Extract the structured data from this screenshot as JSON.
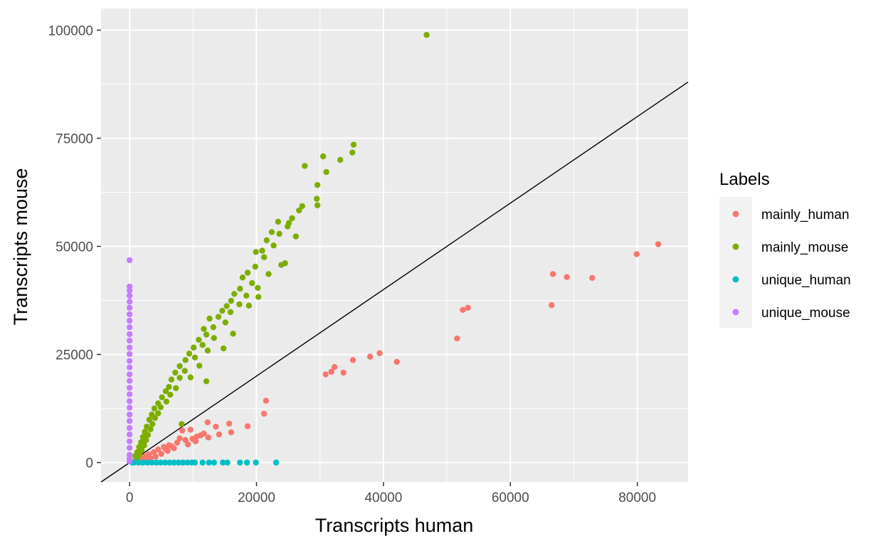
{
  "chart_data": {
    "type": "scatter",
    "xlabel": "Transcripts human",
    "ylabel": "Transcripts mouse",
    "xlim": [
      -4500,
      88000
    ],
    "ylim": [
      -4500,
      105000
    ],
    "x_ticks": [
      0,
      20000,
      40000,
      60000,
      80000
    ],
    "x_tick_labels": [
      "0",
      "20000",
      "40000",
      "60000",
      "80000"
    ],
    "y_ticks": [
      0,
      25000,
      50000,
      75000,
      100000
    ],
    "y_tick_labels": [
      "0",
      "25000",
      "50000",
      "75000",
      "100000"
    ],
    "grid": true,
    "background": "#EBEBEB",
    "reference_line": {
      "type": "identity",
      "slope": 1,
      "intercept": 0,
      "color": "#000000"
    },
    "legend": {
      "title": "Labels",
      "placement": "right"
    },
    "series": [
      {
        "name": "mainly_human",
        "color": "#F8766D",
        "points": [
          [
            83300,
            50500
          ],
          [
            79900,
            48200
          ],
          [
            66700,
            43600
          ],
          [
            68900,
            42900
          ],
          [
            72900,
            42700
          ],
          [
            66500,
            36400
          ],
          [
            53300,
            35800
          ],
          [
            52500,
            35300
          ],
          [
            51600,
            28700
          ],
          [
            39400,
            25300
          ],
          [
            37900,
            24500
          ],
          [
            35200,
            23700
          ],
          [
            42100,
            23300
          ],
          [
            32300,
            22100
          ],
          [
            31800,
            21000
          ],
          [
            30900,
            20400
          ],
          [
            33700,
            20800
          ],
          [
            21500,
            14300
          ],
          [
            21200,
            11300
          ],
          [
            12300,
            9300
          ],
          [
            15700,
            9000
          ],
          [
            18600,
            8400
          ],
          [
            13600,
            8300
          ],
          [
            9600,
            7600
          ],
          [
            8300,
            7400
          ],
          [
            16000,
            7000
          ],
          [
            11700,
            6700
          ],
          [
            14100,
            6500
          ],
          [
            10600,
            6000
          ],
          [
            9900,
            5500
          ],
          [
            12400,
            5800
          ],
          [
            7500,
            4600
          ],
          [
            8800,
            5200
          ],
          [
            6200,
            4000
          ],
          [
            9200,
            4200
          ],
          [
            5400,
            3600
          ],
          [
            7000,
            3300
          ],
          [
            4500,
            3000
          ],
          [
            6000,
            2700
          ],
          [
            3800,
            2400
          ],
          [
            5000,
            2000
          ],
          [
            3000,
            1900
          ],
          [
            4100,
            1400
          ],
          [
            2400,
            1400
          ],
          [
            3300,
            1000
          ],
          [
            1800,
            900
          ],
          [
            2700,
            600
          ],
          [
            1400,
            500
          ],
          [
            2100,
            300
          ],
          [
            1100,
            200
          ],
          [
            10400,
            4900
          ],
          [
            11200,
            6300
          ],
          [
            7900,
            5600
          ],
          [
            6600,
            3800
          ],
          [
            5700,
            3100
          ]
        ]
      },
      {
        "name": "mainly_mouse",
        "color": "#7CAE00",
        "points": [
          [
            46800,
            98900
          ],
          [
            35300,
            73500
          ],
          [
            35100,
            71700
          ],
          [
            30500,
            70800
          ],
          [
            33200,
            70000
          ],
          [
            27600,
            68600
          ],
          [
            31000,
            67200
          ],
          [
            29600,
            64200
          ],
          [
            29500,
            61000
          ],
          [
            27200,
            59300
          ],
          [
            26700,
            58300
          ],
          [
            29600,
            59500
          ],
          [
            25600,
            56500
          ],
          [
            23400,
            55700
          ],
          [
            24900,
            54600
          ],
          [
            22400,
            53300
          ],
          [
            23600,
            52900
          ],
          [
            26200,
            52300
          ],
          [
            21600,
            51400
          ],
          [
            22700,
            50200
          ],
          [
            20900,
            49000
          ],
          [
            19900,
            48700
          ],
          [
            21200,
            47500
          ],
          [
            24500,
            46100
          ],
          [
            23900,
            45700
          ],
          [
            19800,
            45300
          ],
          [
            18600,
            43900
          ],
          [
            17800,
            42800
          ],
          [
            19300,
            41500
          ],
          [
            20200,
            40400
          ],
          [
            17400,
            40200
          ],
          [
            16500,
            39000
          ],
          [
            18400,
            38600
          ],
          [
            16000,
            37400
          ],
          [
            15300,
            36200
          ],
          [
            17300,
            36600
          ],
          [
            14600,
            35100
          ],
          [
            14000,
            33700
          ],
          [
            12600,
            33300
          ],
          [
            15100,
            32400
          ],
          [
            13200,
            31300
          ],
          [
            11700,
            30900
          ],
          [
            12100,
            29600
          ],
          [
            13300,
            28800
          ],
          [
            10900,
            28400
          ],
          [
            11500,
            27200
          ],
          [
            10100,
            26600
          ],
          [
            12300,
            25900
          ],
          [
            9400,
            25200
          ],
          [
            10300,
            24300
          ],
          [
            8800,
            23700
          ],
          [
            11000,
            22400
          ],
          [
            7900,
            22300
          ],
          [
            8700,
            21200
          ],
          [
            7200,
            20800
          ],
          [
            7900,
            19600
          ],
          [
            6600,
            19200
          ],
          [
            6200,
            17500
          ],
          [
            7300,
            17200
          ],
          [
            5700,
            16500
          ],
          [
            6400,
            15700
          ],
          [
            5100,
            15100
          ],
          [
            5800,
            14100
          ],
          [
            4500,
            13700
          ],
          [
            4900,
            12800
          ],
          [
            3900,
            12500
          ],
          [
            4500,
            11400
          ],
          [
            3500,
            11100
          ],
          [
            4000,
            10300
          ],
          [
            3100,
            9900
          ],
          [
            3600,
            8900
          ],
          [
            2700,
            8300
          ],
          [
            3300,
            7700
          ],
          [
            2400,
            7100
          ],
          [
            2900,
            6400
          ],
          [
            2100,
            5900
          ],
          [
            2600,
            5200
          ],
          [
            1800,
            4700
          ],
          [
            2300,
            4000
          ],
          [
            1500,
            3600
          ],
          [
            1900,
            2900
          ],
          [
            1200,
            2400
          ],
          [
            1500,
            1800
          ],
          [
            900,
            1500
          ],
          [
            1100,
            900
          ],
          [
            8200,
            8900
          ],
          [
            12100,
            18800
          ],
          [
            9600,
            19700
          ],
          [
            14800,
            26400
          ],
          [
            16300,
            29800
          ],
          [
            21900,
            43600
          ],
          [
            25100,
            55400
          ],
          [
            18800,
            36300
          ],
          [
            20300,
            38300
          ],
          [
            15900,
            34800
          ]
        ]
      },
      {
        "name": "unique_human",
        "color": "#00BFC4",
        "points": [
          [
            23100,
            0
          ],
          [
            19900,
            0
          ],
          [
            18500,
            0
          ],
          [
            17400,
            0
          ],
          [
            15400,
            0
          ],
          [
            14700,
            0
          ],
          [
            13300,
            0
          ],
          [
            12500,
            0
          ],
          [
            11500,
            0
          ],
          [
            10300,
            0
          ],
          [
            9800,
            0
          ],
          [
            9100,
            0
          ],
          [
            8400,
            0
          ],
          [
            7700,
            0
          ],
          [
            7000,
            0
          ],
          [
            6300,
            0
          ],
          [
            5600,
            0
          ],
          [
            4900,
            0
          ],
          [
            4200,
            0
          ],
          [
            3500,
            0
          ],
          [
            2800,
            0
          ],
          [
            2100,
            0
          ],
          [
            1400,
            0
          ],
          [
            700,
            0
          ],
          [
            400,
            0
          ]
        ]
      },
      {
        "name": "unique_mouse",
        "color": "#C77CFF",
        "points": [
          [
            0,
            46800
          ],
          [
            0,
            40700
          ],
          [
            0,
            39800
          ],
          [
            0,
            38600
          ],
          [
            0,
            37200
          ],
          [
            0,
            35800
          ],
          [
            0,
            34300
          ],
          [
            0,
            32800
          ],
          [
            0,
            31300
          ],
          [
            0,
            29700
          ],
          [
            0,
            28200
          ],
          [
            0,
            26600
          ],
          [
            0,
            25100
          ],
          [
            0,
            23500
          ],
          [
            0,
            22000
          ],
          [
            0,
            20400
          ],
          [
            0,
            18900
          ],
          [
            0,
            17300
          ],
          [
            0,
            15800
          ],
          [
            0,
            14200
          ],
          [
            0,
            12700
          ],
          [
            0,
            11100
          ],
          [
            0,
            9600
          ],
          [
            0,
            8000
          ],
          [
            0,
            6500
          ],
          [
            0,
            4900
          ],
          [
            0,
            3400
          ],
          [
            0,
            1800
          ],
          [
            0,
            900
          ],
          [
            0,
            300
          ]
        ]
      }
    ]
  }
}
